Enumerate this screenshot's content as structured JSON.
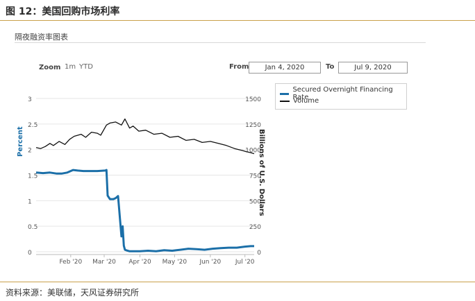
{
  "figure_title": "图 12：美国回购市场利率",
  "subtitle": "隔夜融资率图表",
  "source": "资料来源：美联储，天风证券研究所",
  "controls": {
    "zoom_label": "Zoom",
    "zoom_1m": "1m",
    "zoom_ytd": "YTD",
    "from_label": "From",
    "from_value": "Jan 4, 2020",
    "to_label": "To",
    "to_value": "Jul 9, 2020"
  },
  "colors": {
    "rate": "#1b6fa8",
    "volume": "#111111",
    "grid": "#e6e6e6",
    "rule": "#c9a04a"
  },
  "chart_data": {
    "type": "line",
    "title": "",
    "ylabel": "Percent",
    "y2label": "Billions of U.S. Dollars",
    "ylim": [
      0,
      3
    ],
    "y2lim": [
      0,
      1500
    ],
    "yticks": [
      "0",
      "0.5",
      "1",
      "1.5",
      "2",
      "2.5",
      "3"
    ],
    "y2ticks": [
      "0",
      "250",
      "500",
      "750",
      "1000",
      "1250",
      "1500"
    ],
    "xticks": [
      {
        "label": "Feb '20",
        "date": "2020-02-01"
      },
      {
        "label": "Mar '20",
        "date": "2020-03-01"
      },
      {
        "label": "Apr '20",
        "date": "2020-04-01"
      },
      {
        "label": "May '20",
        "date": "2020-05-01"
      },
      {
        "label": "Jun '20",
        "date": "2020-06-01"
      },
      {
        "label": "Jul '20",
        "date": "2020-07-01"
      }
    ],
    "xlim": [
      "2020-01-02",
      "2020-07-09"
    ],
    "grid": true,
    "legend_position": "top-right",
    "series": [
      {
        "name": "Secured Overnight Financing Rate",
        "axis": "left",
        "x": [
          "2020-01-02",
          "2020-01-08",
          "2020-01-14",
          "2020-01-20",
          "2020-01-24",
          "2020-01-29",
          "2020-02-03",
          "2020-02-07",
          "2020-02-12",
          "2020-02-17",
          "2020-02-24",
          "2020-03-02",
          "2020-03-03",
          "2020-03-04",
          "2020-03-06",
          "2020-03-09",
          "2020-03-11",
          "2020-03-13",
          "2020-03-16",
          "2020-03-17",
          "2020-03-18",
          "2020-03-19",
          "2020-03-20",
          "2020-03-23",
          "2020-03-25",
          "2020-03-27",
          "2020-04-01",
          "2020-04-08",
          "2020-04-15",
          "2020-04-22",
          "2020-04-29",
          "2020-05-06",
          "2020-05-13",
          "2020-05-20",
          "2020-05-27",
          "2020-06-03",
          "2020-06-10",
          "2020-06-17",
          "2020-06-24",
          "2020-07-01",
          "2020-07-06",
          "2020-07-09"
        ],
        "y": [
          1.55,
          1.54,
          1.55,
          1.53,
          1.53,
          1.55,
          1.6,
          1.59,
          1.58,
          1.58,
          1.58,
          1.59,
          1.6,
          1.1,
          1.03,
          1.03,
          1.05,
          1.09,
          0.3,
          0.5,
          0.12,
          0.04,
          0.03,
          0.01,
          0.01,
          0.01,
          0.01,
          0.02,
          0.01,
          0.03,
          0.02,
          0.04,
          0.06,
          0.05,
          0.04,
          0.06,
          0.07,
          0.08,
          0.08,
          0.1,
          0.11,
          0.11
        ]
      },
      {
        "name": "Volume",
        "axis": "right",
        "x": [
          "2020-01-02",
          "2020-01-06",
          "2020-01-10",
          "2020-01-14",
          "2020-01-17",
          "2020-01-22",
          "2020-01-27",
          "2020-01-31",
          "2020-02-04",
          "2020-02-10",
          "2020-02-14",
          "2020-02-19",
          "2020-02-24",
          "2020-02-27",
          "2020-03-03",
          "2020-03-06",
          "2020-03-11",
          "2020-03-16",
          "2020-03-19",
          "2020-03-23",
          "2020-03-26",
          "2020-03-31",
          "2020-04-06",
          "2020-04-13",
          "2020-04-20",
          "2020-04-27",
          "2020-05-04",
          "2020-05-11",
          "2020-05-18",
          "2020-05-25",
          "2020-06-01",
          "2020-06-08",
          "2020-06-15",
          "2020-06-22",
          "2020-06-29",
          "2020-07-02",
          "2020-07-06",
          "2020-07-09"
        ],
        "y": [
          1020,
          1010,
          1030,
          1060,
          1040,
          1080,
          1050,
          1100,
          1130,
          1150,
          1120,
          1170,
          1160,
          1140,
          1240,
          1260,
          1270,
          1240,
          1300,
          1210,
          1230,
          1180,
          1190,
          1150,
          1160,
          1120,
          1130,
          1090,
          1100,
          1070,
          1080,
          1060,
          1040,
          1010,
          990,
          980,
          970,
          960
        ]
      }
    ]
  }
}
